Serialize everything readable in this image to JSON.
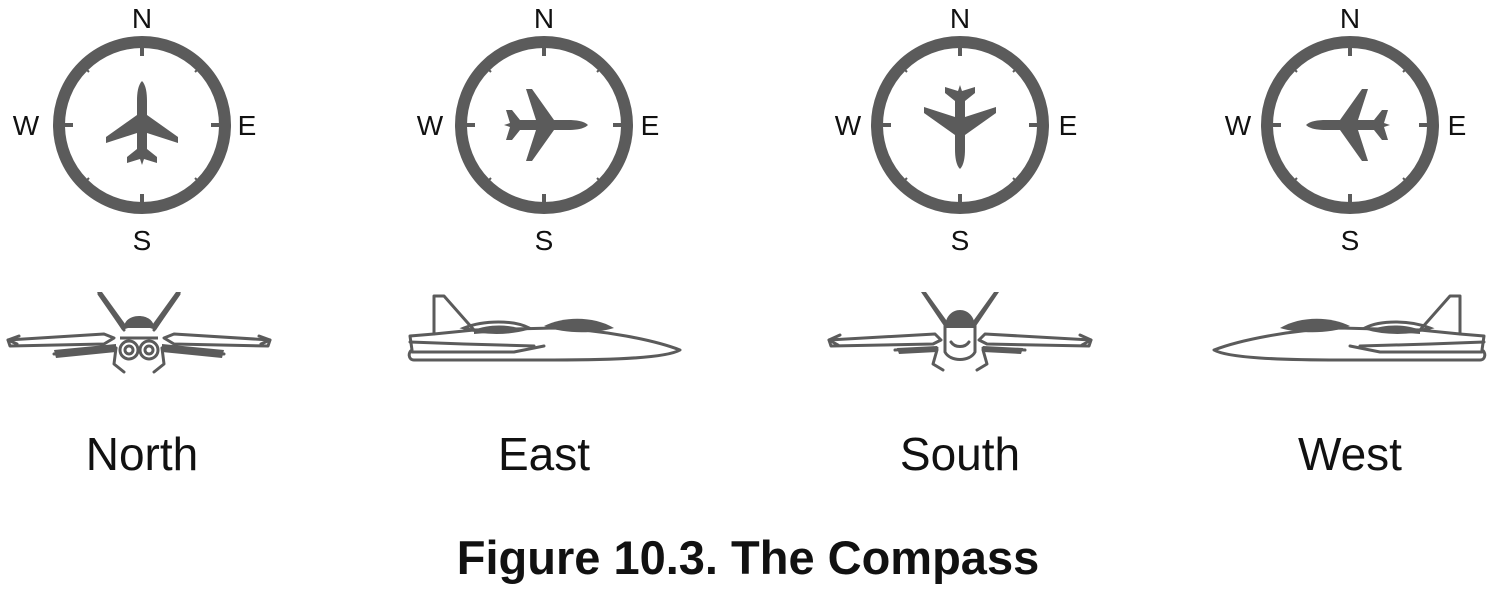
{
  "compass_letters": {
    "north": "N",
    "east": "E",
    "south": "S",
    "west": "W"
  },
  "panels": [
    {
      "label": "North",
      "heading_deg": 0,
      "side_view": "front"
    },
    {
      "label": "East",
      "heading_deg": 90,
      "side_view": "side-right"
    },
    {
      "label": "South",
      "heading_deg": 180,
      "side_view": "back"
    },
    {
      "label": "West",
      "heading_deg": 270,
      "side_view": "side-left"
    }
  ],
  "figure": {
    "title": "Figure 10.3. The Compass"
  },
  "colors": {
    "icon": "#5b5b5b",
    "text": "#111111",
    "background": "#ffffff"
  }
}
